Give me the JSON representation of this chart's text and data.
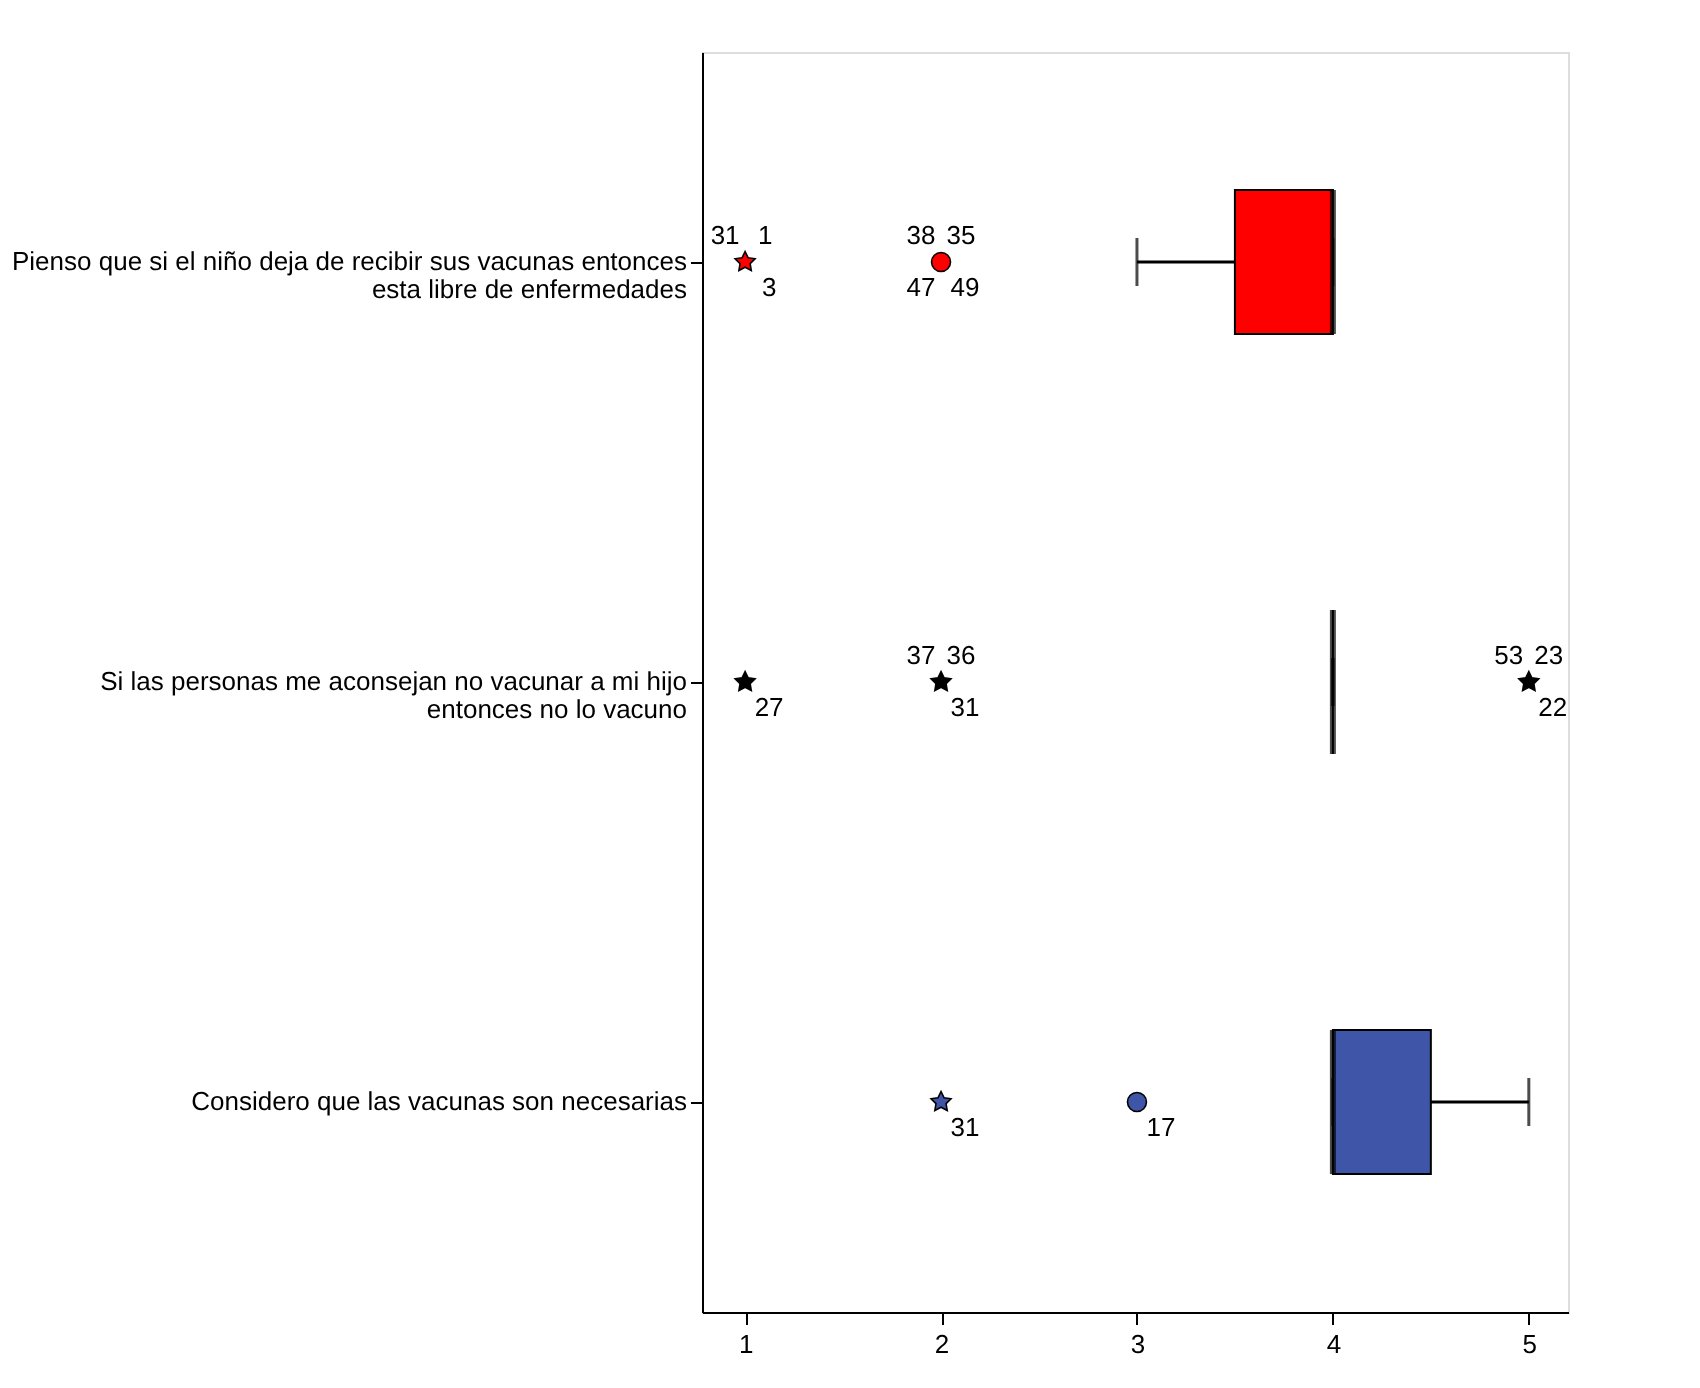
{
  "chart_data": {
    "type": "box",
    "orientation": "horizontal",
    "categories": [
      "Pienso que si el niño deja de recibir sus vacunas entonces\nesta libre de enfermedades",
      "Si las personas me aconsejan no vacunar a mi hijo\nentonces no lo vacuno",
      "Considero que las vacunas son necesarias"
    ],
    "boxes": [
      {
        "low": 3,
        "q1": 3.5,
        "median": 4,
        "q3": 4,
        "high": 4,
        "outliers": [
          1,
          2
        ]
      },
      {
        "low": 4,
        "q1": 4,
        "median": 4,
        "q3": 4,
        "high": 4,
        "outliers": [
          1,
          2,
          5
        ]
      },
      {
        "low": 4,
        "q1": 4,
        "median": 4,
        "q3": 4.5,
        "high": 5,
        "outliers": [
          2,
          3
        ]
      }
    ],
    "colors": [
      "#ff0000",
      "#000000",
      "#3f56a8"
    ],
    "xlim": [
      0.78,
      5.2
    ],
    "xticks": [
      {
        "value": 1,
        "label": "1"
      },
      {
        "value": 2,
        "label": "2"
      },
      {
        "value": 3,
        "label": "3"
      },
      {
        "value": 4,
        "label": "4"
      },
      {
        "value": 5,
        "label": "5"
      }
    ],
    "grid": false,
    "legend": false,
    "annotations": [
      "31",
      "1",
      "3",
      "38",
      "35",
      "47",
      "49",
      "27",
      "37",
      "36",
      "31",
      "53",
      "23",
      "22",
      "31",
      "17"
    ]
  }
}
